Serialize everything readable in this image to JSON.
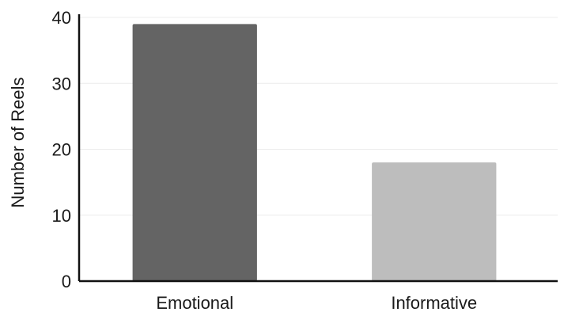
{
  "chart_data": {
    "type": "bar",
    "title": "",
    "xlabel": "",
    "ylabel": "Number of Reels",
    "categories": [
      "Emotional",
      "Informative"
    ],
    "values": [
      39,
      18
    ],
    "colors": [
      "#646464",
      "#bdbdbd"
    ],
    "ylim": [
      0,
      40
    ],
    "yticks": [
      0,
      10,
      20,
      30,
      40
    ],
    "grid": true,
    "legend": "none"
  }
}
